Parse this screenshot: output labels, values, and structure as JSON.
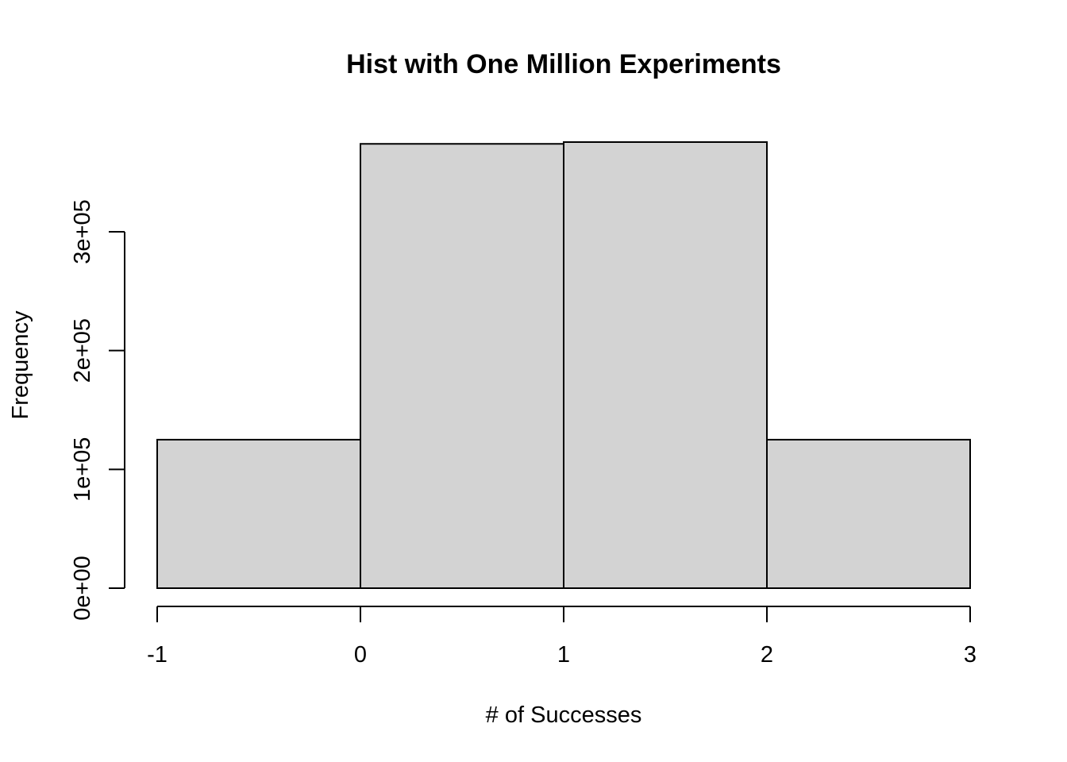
{
  "chart_data": {
    "type": "bar",
    "title": "Hist with One Million Experiments",
    "xlabel": "# of Successes",
    "ylabel": "Frequency",
    "bins": [
      {
        "from": -1,
        "to": 0,
        "value": 125000
      },
      {
        "from": 0,
        "to": 1,
        "value": 374000
      },
      {
        "from": 1,
        "to": 2,
        "value": 375500
      },
      {
        "from": 2,
        "to": 3,
        "value": 125000
      }
    ],
    "xlim": [
      -1,
      3
    ],
    "ylim": [
      0,
      375500
    ],
    "x_ticks": [
      -1,
      0,
      1,
      2,
      3
    ],
    "x_tick_labels": [
      "-1",
      "0",
      "1",
      "2",
      "3"
    ],
    "y_ticks": [
      0,
      100000,
      200000,
      300000
    ],
    "y_tick_labels": [
      "0e+00",
      "1e+05",
      "2e+05",
      "3e+05"
    ],
    "bar_fill": "#d3d3d3",
    "bar_stroke": "#000000",
    "grid": false,
    "legend": "none"
  }
}
